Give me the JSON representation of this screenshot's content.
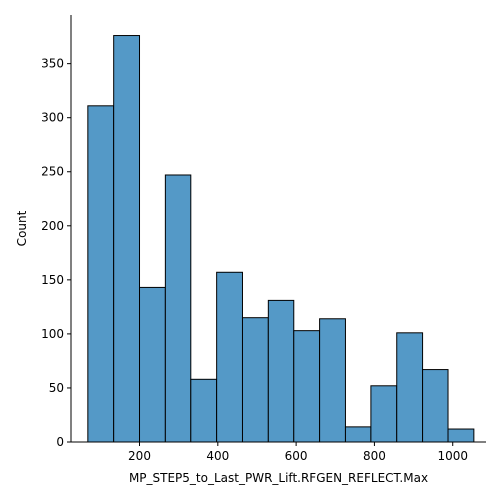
{
  "chart_data": {
    "type": "bar",
    "subtype": "histogram",
    "xlabel": "MP_STEP5_to_Last_PWR_Lift.RFGEN_REFLECT.Max",
    "ylabel": "Count",
    "bar_color": "#5499c7",
    "edge_color": "#000000",
    "grid": false,
    "xlim": [
      25,
      1085
    ],
    "ylim": [
      0,
      395
    ],
    "x_ticks": [
      200,
      400,
      600,
      800,
      1000
    ],
    "y_ticks": [
      0,
      50,
      100,
      150,
      200,
      250,
      300,
      350
    ],
    "bins": [
      {
        "x0": 68,
        "x1": 134,
        "count": 311
      },
      {
        "x0": 134,
        "x1": 200,
        "count": 376
      },
      {
        "x0": 200,
        "x1": 266,
        "count": 143
      },
      {
        "x0": 266,
        "x1": 331,
        "count": 247
      },
      {
        "x0": 331,
        "x1": 397,
        "count": 58
      },
      {
        "x0": 397,
        "x1": 463,
        "count": 157
      },
      {
        "x0": 463,
        "x1": 529,
        "count": 115
      },
      {
        "x0": 529,
        "x1": 594,
        "count": 131
      },
      {
        "x0": 594,
        "x1": 660,
        "count": 103
      },
      {
        "x0": 660,
        "x1": 726,
        "count": 114
      },
      {
        "x0": 726,
        "x1": 791,
        "count": 14
      },
      {
        "x0": 791,
        "x1": 857,
        "count": 52
      },
      {
        "x0": 857,
        "x1": 923,
        "count": 101
      },
      {
        "x0": 923,
        "x1": 988,
        "count": 67
      },
      {
        "x0": 988,
        "x1": 1054,
        "count": 12
      }
    ]
  }
}
